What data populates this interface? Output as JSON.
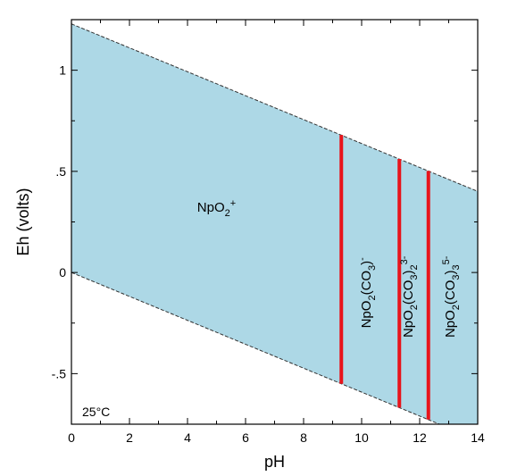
{
  "chart_data": {
    "type": "area",
    "xlabel": "pH",
    "ylabel": "Eh (volts)",
    "xlim": [
      0,
      14
    ],
    "ylim": [
      -0.75,
      1.25
    ],
    "x_ticks": [
      0,
      2,
      4,
      6,
      8,
      10,
      12,
      14
    ],
    "x_tick_labels": [
      "0",
      "2",
      "4",
      "6",
      "8",
      "10",
      "12",
      "14"
    ],
    "y_ticks": [
      1,
      0.5,
      0,
      -0.5
    ],
    "y_tick_labels": [
      "1",
      ".5",
      "0",
      "-.5"
    ],
    "annotation": "25°C",
    "colors": {
      "fill": "#add8e6",
      "boundary": "#e8141b",
      "water_line": "#333333",
      "frame": "#000000"
    },
    "water_stability": {
      "upper": {
        "x": [
          0,
          14
        ],
        "y": [
          1.229,
          0.401
        ]
      },
      "lower": {
        "x": [
          0,
          14
        ],
        "y": [
          0.0,
          -0.828
        ]
      }
    },
    "boundaries": [
      {
        "pH": 9.3,
        "eh_bottom": -0.55,
        "eh_top": 0.68
      },
      {
        "pH": 11.3,
        "eh_bottom": -0.668,
        "eh_top": 0.561
      },
      {
        "pH": 12.3,
        "eh_bottom": -0.727,
        "eh_top": 0.502
      }
    ],
    "fields": [
      {
        "name": "NpO2+",
        "parts": [
          [
            "NpO",
            ""
          ],
          [
            "2",
            "sub"
          ],
          [
            "+",
            "sup"
          ]
        ],
        "x": 5.0,
        "y": 0.3,
        "rotate": 0
      },
      {
        "name": "NpO2(CO3)-",
        "parts": [
          [
            "NpO",
            ""
          ],
          [
            "2",
            "sub"
          ],
          [
            "(CO",
            ""
          ],
          [
            "3",
            "sub"
          ],
          [
            ")",
            ""
          ],
          [
            "-",
            "sup"
          ]
        ],
        "x": 10.3,
        "y": -0.1,
        "rotate": -90
      },
      {
        "name": "NpO2(CO3)2 3-",
        "parts": [
          [
            "NpO",
            ""
          ],
          [
            "2",
            "sub"
          ],
          [
            "(CO",
            ""
          ],
          [
            "3",
            "sub"
          ],
          [
            ")",
            ""
          ],
          [
            "2",
            "sub"
          ],
          [
            "3-",
            "sup"
          ]
        ],
        "x": 11.75,
        "y": -0.12,
        "rotate": -90
      },
      {
        "name": "NpO2(CO3)3 5-",
        "parts": [
          [
            "NpO",
            ""
          ],
          [
            "2",
            "sub"
          ],
          [
            "(CO",
            ""
          ],
          [
            "3",
            "sub"
          ],
          [
            ")",
            ""
          ],
          [
            "3",
            "sub"
          ],
          [
            "5-",
            "sup"
          ]
        ],
        "x": 13.2,
        "y": -0.12,
        "rotate": -90
      }
    ]
  }
}
